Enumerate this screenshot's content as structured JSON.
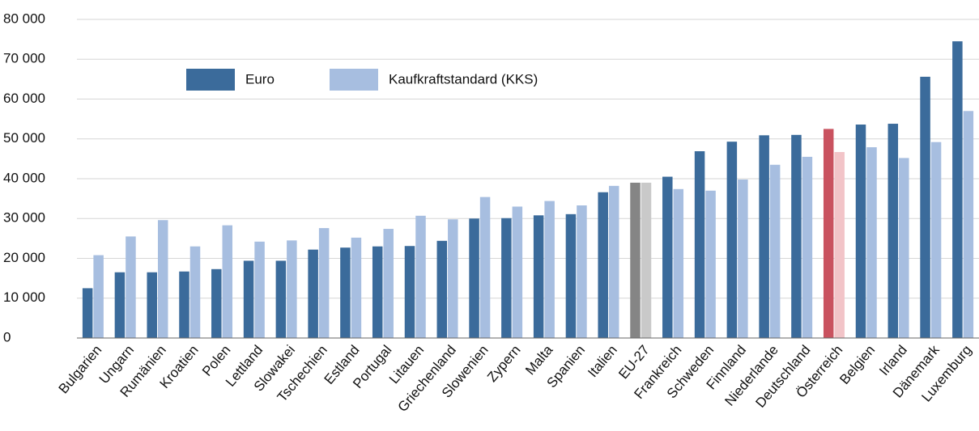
{
  "chart_data": {
    "type": "bar",
    "categories": [
      "Bulgarien",
      "Ungarn",
      "Rumänien",
      "Kroatien",
      "Polen",
      "Lettland",
      "Slowakei",
      "Tschechien",
      "Estland",
      "Portugal",
      "Litauen",
      "Griechenland",
      "Slowenien",
      "Zypern",
      "Malta",
      "Spanien",
      "Italien",
      "EU-27",
      "Frankreich",
      "Schweden",
      "Finnland",
      "Niederlande",
      "Deutschland",
      "Österreich",
      "Belgien",
      "Irland",
      "Dänemark",
      "Luxemburg"
    ],
    "series": [
      {
        "name": "Euro",
        "color": "#3b6b9b",
        "values": [
          12500,
          16500,
          16500,
          16700,
          17300,
          19400,
          19400,
          22200,
          22700,
          23000,
          23100,
          24400,
          30000,
          30100,
          30800,
          31100,
          36600,
          39000,
          40500,
          46900,
          49300,
          50900,
          51000,
          52500,
          53600,
          53800,
          65600,
          74500
        ],
        "colors": [
          "#3b6b9b",
          "#3b6b9b",
          "#3b6b9b",
          "#3b6b9b",
          "#3b6b9b",
          "#3b6b9b",
          "#3b6b9b",
          "#3b6b9b",
          "#3b6b9b",
          "#3b6b9b",
          "#3b6b9b",
          "#3b6b9b",
          "#3b6b9b",
          "#3b6b9b",
          "#3b6b9b",
          "#3b6b9b",
          "#3b6b9b",
          "#858585",
          "#3b6b9b",
          "#3b6b9b",
          "#3b6b9b",
          "#3b6b9b",
          "#3b6b9b",
          "#c9525f",
          "#3b6b9b",
          "#3b6b9b",
          "#3b6b9b",
          "#3b6b9b"
        ]
      },
      {
        "name": "Kaufkraftstandard (KKS)",
        "color": "#a7bee0",
        "values": [
          20800,
          25500,
          29600,
          23000,
          28300,
          24200,
          24500,
          27600,
          25200,
          27400,
          30700,
          29800,
          35400,
          33000,
          34400,
          33300,
          38200,
          39000,
          37400,
          37000,
          39800,
          43500,
          45500,
          46700,
          47900,
          45200,
          49200,
          57000
        ],
        "colors": [
          "#a7bee0",
          "#a7bee0",
          "#a7bee0",
          "#a7bee0",
          "#a7bee0",
          "#a7bee0",
          "#a7bee0",
          "#a7bee0",
          "#a7bee0",
          "#a7bee0",
          "#a7bee0",
          "#a7bee0",
          "#a7bee0",
          "#a7bee0",
          "#a7bee0",
          "#a7bee0",
          "#a7bee0",
          "#c9c9c9",
          "#a7bee0",
          "#a7bee0",
          "#a7bee0",
          "#a7bee0",
          "#a7bee0",
          "#f2c4c8",
          "#a7bee0",
          "#a7bee0",
          "#a7bee0",
          "#a7bee0"
        ]
      }
    ],
    "ylim": [
      0,
      80000
    ],
    "yticks": [
      0,
      {
        "value": 10000,
        "label": "10 000"
      },
      {
        "value": 20000,
        "label": "20 000"
      },
      {
        "value": 30000,
        "label": "30 000"
      },
      {
        "value": 40000,
        "label": "40 000"
      },
      {
        "value": 50000,
        "label": "50 000"
      },
      {
        "value": 60000,
        "label": "60 000"
      },
      {
        "value": 70000,
        "label": "70 000"
      },
      {
        "value": 80000,
        "label": "80 000"
      }
    ],
    "grid": true
  }
}
